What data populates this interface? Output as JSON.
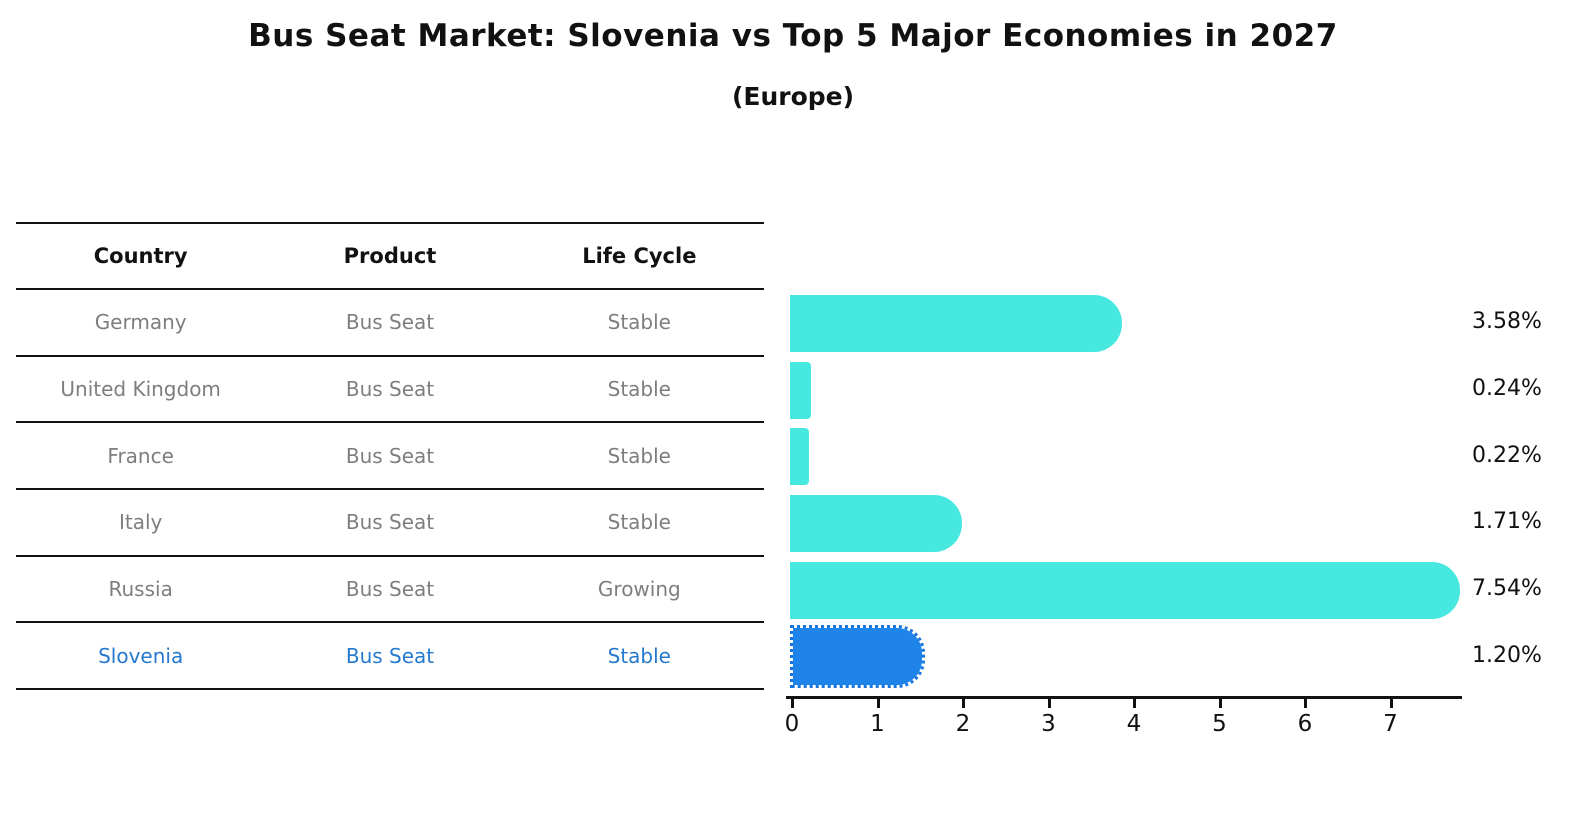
{
  "chart_data": {
    "type": "bar",
    "orientation": "horizontal",
    "title": "Bus Seat Market: Slovenia vs Top 5 Major Economies in 2027",
    "subtitle": "(Europe)",
    "columns": [
      "Country",
      "Product",
      "Life Cycle"
    ],
    "rows": [
      {
        "country": "Germany",
        "product": "Bus Seat",
        "life_cycle": "Stable",
        "value": 3.58,
        "value_label": "3.58%",
        "highlight": false
      },
      {
        "country": "United Kingdom",
        "product": "Bus Seat",
        "life_cycle": "Stable",
        "value": 0.24,
        "value_label": "0.24%",
        "highlight": false
      },
      {
        "country": "France",
        "product": "Bus Seat",
        "life_cycle": "Stable",
        "value": 0.22,
        "value_label": "0.22%",
        "highlight": false
      },
      {
        "country": "Italy",
        "product": "Bus Seat",
        "life_cycle": "Stable",
        "value": 1.71,
        "value_label": "1.71%",
        "highlight": false
      },
      {
        "country": "Russia",
        "product": "Bus Seat",
        "life_cycle": "Growing",
        "value": 7.54,
        "value_label": "7.54%",
        "highlight": false
      },
      {
        "country": "Slovenia",
        "product": "Bus Seat",
        "life_cycle": "Stable",
        "value": 1.2,
        "value_label": "1.20%",
        "highlight": true
      }
    ],
    "x_ticks": [
      0,
      1,
      2,
      3,
      4,
      5,
      6,
      7
    ],
    "xlim": [
      0,
      7.86
    ],
    "grid": false,
    "legend": "none",
    "colors": {
      "bar": "#47E8E0",
      "highlight_bar": "#1E84EA",
      "highlight_bar_edge": "#1876DE",
      "highlight_text": "#2579CE",
      "row_text": "#7E7E7E",
      "axis_text": "#111111"
    }
  }
}
